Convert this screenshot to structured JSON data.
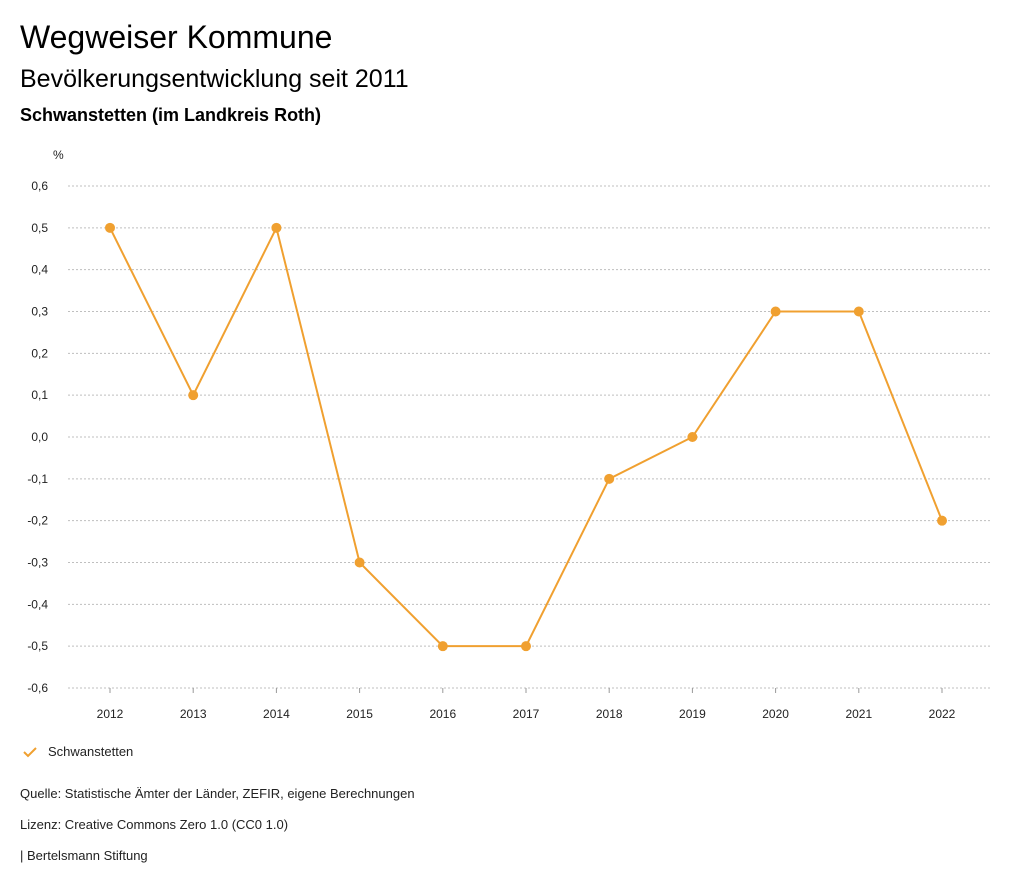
{
  "header": {
    "title": "Wegweiser Kommune",
    "subtitle": "Bevölkerungsentwicklung seit 2011",
    "region": "Schwanstetten (im Landkreis Roth)"
  },
  "chart_data": {
    "type": "line",
    "ylabel": "%",
    "ylim": [
      -0.6,
      0.6
    ],
    "yticks": [
      "0,6",
      "0,5",
      "0,4",
      "0,3",
      "0,2",
      "0,1",
      "0,0",
      "-0,1",
      "-0,2",
      "-0,3",
      "-0,4",
      "-0,5",
      "-0,6"
    ],
    "ytick_values": [
      0.6,
      0.5,
      0.4,
      0.3,
      0.2,
      0.1,
      0.0,
      -0.1,
      -0.2,
      -0.3,
      -0.4,
      -0.5,
      -0.6
    ],
    "categories": [
      "2012",
      "2013",
      "2014",
      "2015",
      "2016",
      "2017",
      "2018",
      "2019",
      "2020",
      "2021",
      "2022"
    ],
    "series": [
      {
        "name": "Schwanstetten",
        "values": [
          0.5,
          0.1,
          0.5,
          -0.3,
          -0.5,
          -0.5,
          -0.1,
          0.0,
          0.3,
          0.3,
          -0.2
        ]
      }
    ],
    "grid": true,
    "legend_position": "bottom-left"
  },
  "colors": {
    "series": "#F0A030",
    "grid": "#bfbfbf",
    "text": "#222222"
  },
  "legend": {
    "label": "Schwanstetten",
    "icon": "check-icon"
  },
  "footer": {
    "source": "Quelle: Statistische Ämter der Länder, ZEFIR, eigene Berechnungen",
    "license": "Lizenz: Creative Commons Zero 1.0 (CC0 1.0)",
    "publisher": "| Bertelsmann Stiftung"
  }
}
